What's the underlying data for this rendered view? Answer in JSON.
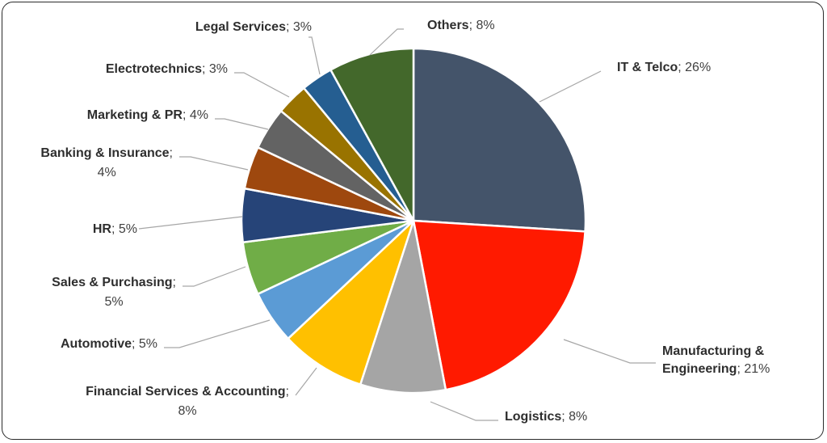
{
  "chart_data": {
    "type": "pie",
    "title": "",
    "legend": "none",
    "slices": [
      {
        "name": "IT & Telco",
        "value": 26,
        "label": "26%",
        "color": "#44546a"
      },
      {
        "name": "Manufacturing & Engineering",
        "value": 21,
        "label": "21%",
        "color": "#ff1a00"
      },
      {
        "name": "Logistics",
        "value": 8,
        "label": "8%",
        "color": "#a5a5a5"
      },
      {
        "name": "Financial Services & Accounting",
        "value": 8,
        "label": "8%",
        "color": "#ffc000"
      },
      {
        "name": "Automotive",
        "value": 5,
        "label": "5%",
        "color": "#5b9bd5"
      },
      {
        "name": "Sales & Purchasing",
        "value": 5,
        "label": "5%",
        "color": "#70ad47"
      },
      {
        "name": "HR",
        "value": 5,
        "label": "5%",
        "color": "#264478"
      },
      {
        "name": "Banking & Insurance",
        "value": 4,
        "label": "4%",
        "color": "#9e480e"
      },
      {
        "name": "Marketing & PR",
        "value": 4,
        "label": "4%",
        "color": "#636363"
      },
      {
        "name": "Electrotechnics",
        "value": 3,
        "label": "3%",
        "color": "#997300"
      },
      {
        "name": "Legal Services",
        "value": 3,
        "label": "3%",
        "color": "#255e91"
      },
      {
        "name": "Others",
        "value": 8,
        "label": "8%",
        "color": "#43682b"
      }
    ]
  }
}
